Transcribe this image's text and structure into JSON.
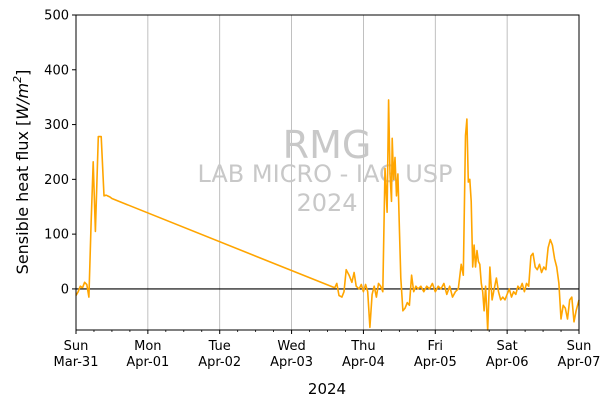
{
  "chart_data": {
    "type": "line",
    "ylabel": "Sensible heat flux [W/m²]",
    "ylabel_parts": {
      "text": "Sensible heat flux [",
      "var": "W/m",
      "exp": "2",
      "close": "]"
    },
    "xlabel": "2024",
    "ylim": [
      -75,
      500
    ],
    "yticks": [
      0,
      100,
      200,
      300,
      400,
      500
    ],
    "xlim": [
      0,
      7
    ],
    "xticks": [
      {
        "x": 0,
        "day": "Sun",
        "date": "Mar-31"
      },
      {
        "x": 1,
        "day": "Mon",
        "date": "Apr-01"
      },
      {
        "x": 2,
        "day": "Tue",
        "date": "Apr-02"
      },
      {
        "x": 3,
        "day": "Wed",
        "date": "Apr-03"
      },
      {
        "x": 4,
        "day": "Thu",
        "date": "Apr-04"
      },
      {
        "x": 5,
        "day": "Fri",
        "date": "Apr-05"
      },
      {
        "x": 6,
        "day": "Sat",
        "date": "Apr-06"
      },
      {
        "x": 7,
        "day": "Sun",
        "date": "Apr-07"
      }
    ],
    "grid": "vertical",
    "zero_line": true,
    "watermark": {
      "line1": "RMG",
      "line2": "LAB MICRO - IAG USP",
      "line3": "2024"
    },
    "series": [
      {
        "color": "#ffa500",
        "x": [
          0,
          0.03,
          0.06,
          0.09,
          0.12,
          0.15,
          0.18,
          0.21,
          0.24,
          0.27,
          0.31,
          0.35,
          0.39,
          0.42,
          0.44,
          0.45,
          0.47,
          0.5,
          3.6,
          3.63,
          3.66,
          3.7,
          3.73,
          3.76,
          3.8,
          3.84,
          3.87,
          3.9,
          3.94,
          3.97,
          4.0,
          4.03,
          4.06,
          4.09,
          4.12,
          4.15,
          4.18,
          4.21,
          4.24,
          4.27,
          4.3,
          4.33,
          4.35,
          4.37,
          4.39,
          4.4,
          4.42,
          4.44,
          4.46,
          4.48,
          4.5,
          4.52,
          4.55,
          4.58,
          4.61,
          4.64,
          4.67,
          4.7,
          4.73,
          4.76,
          4.8,
          4.84,
          4.88,
          4.92,
          4.96,
          5.0,
          5.04,
          5.08,
          5.12,
          5.16,
          5.2,
          5.24,
          5.28,
          5.32,
          5.36,
          5.39,
          5.42,
          5.44,
          5.46,
          5.48,
          5.5,
          5.52,
          5.54,
          5.56,
          5.58,
          5.6,
          5.62,
          5.64,
          5.66,
          5.68,
          5.7,
          5.73,
          5.76,
          5.79,
          5.82,
          5.85,
          5.88,
          5.91,
          5.94,
          5.97,
          6.0,
          6.03,
          6.06,
          6.09,
          6.12,
          6.15,
          6.18,
          6.21,
          6.24,
          6.27,
          6.3,
          6.33,
          6.36,
          6.39,
          6.42,
          6.45,
          6.48,
          6.51,
          6.54,
          6.57,
          6.6,
          6.63,
          6.66,
          6.69,
          6.72,
          6.75,
          6.78,
          6.81,
          6.84,
          6.87,
          6.9,
          6.93,
          6.96,
          7.0
        ],
        "y": [
          -12,
          -5,
          5,
          2,
          12,
          8,
          -15,
          120,
          232,
          105,
          278,
          278,
          170,
          171,
          170,
          169,
          168,
          165,
          2,
          10,
          -12,
          -15,
          -5,
          35,
          25,
          12,
          30,
          5,
          0,
          8,
          -5,
          8,
          -5,
          -70,
          -10,
          5,
          -15,
          10,
          5,
          -5,
          220,
          140,
          345,
          210,
          160,
          275,
          200,
          240,
          170,
          210,
          110,
          20,
          -40,
          -35,
          -25,
          -30,
          25,
          -5,
          5,
          0,
          5,
          -5,
          5,
          0,
          10,
          -5,
          5,
          0,
          10,
          -10,
          5,
          -15,
          -5,
          0,
          45,
          25,
          280,
          310,
          195,
          200,
          160,
          40,
          80,
          40,
          70,
          50,
          45,
          10,
          -5,
          -40,
          5,
          -75,
          40,
          -20,
          0,
          20,
          -5,
          -20,
          -15,
          -20,
          -10,
          0,
          -15,
          -5,
          -10,
          5,
          0,
          10,
          -5,
          10,
          5,
          60,
          65,
          40,
          35,
          45,
          30,
          40,
          35,
          75,
          90,
          80,
          55,
          40,
          10,
          -55,
          -30,
          -35,
          -55,
          -20,
          -15,
          -60,
          -40,
          -20
        ]
      }
    ]
  }
}
